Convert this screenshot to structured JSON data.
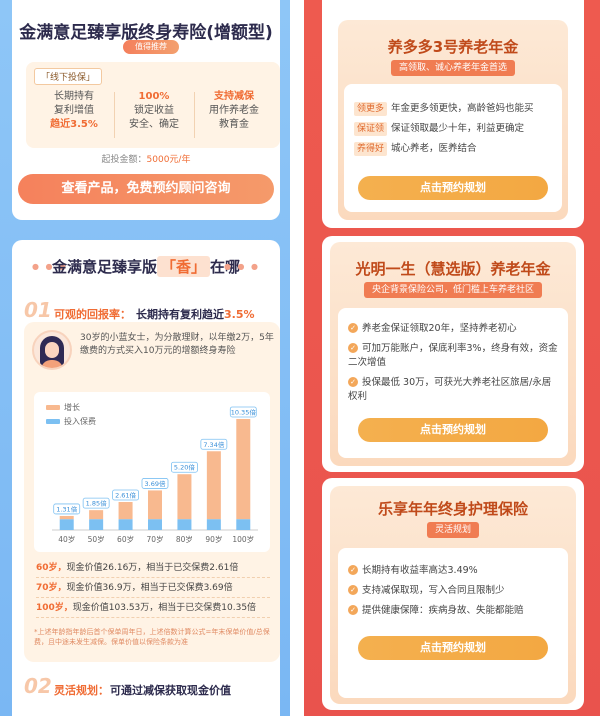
{
  "left": {
    "card1": {
      "title": "金满意足臻享版终身寿险(增额型)",
      "badge": "值得推荐",
      "offline_tag": "「线下投保」",
      "features": [
        {
          "line1": "长期持有",
          "line2": "复利增值",
          "line3": "趋近3.5%"
        },
        {
          "line1": "100%",
          "line2": "锁定收益",
          "line3": "安全、确定"
        },
        {
          "line1": "支持减保",
          "line2": "用作养老金",
          "line3": "教育金"
        }
      ],
      "min_label": "起投金额：",
      "min_value": "5000元/年",
      "cta": "查看产品，免费预约顾问咨询"
    },
    "card2": {
      "title_pre": "金满意足臻享版",
      "title_hl": "「香」",
      "title_post": "在哪",
      "sec1": {
        "num": "01",
        "label": "可观的回报率：",
        "text": "长期持有复利趋近",
        "hl": "3.5%"
      },
      "story": "30岁的小蓝女士，为分散理财，以年缴2万，5年缴费的方式买入10万元的增额终身寿险",
      "legend": {
        "grow": "增长",
        "paid": "投入保费"
      },
      "calcs": [
        {
          "age": "60岁，",
          "text": "现金价值26.16万，相当于已交保费2.61倍"
        },
        {
          "age": "70岁，",
          "text": "现金价值36.9万，相当于已交保费3.69倍"
        },
        {
          "age": "100岁，",
          "text": "现金价值103.53万，相当于已交保费10.35倍"
        }
      ],
      "note": "*上述年龄指年龄后首个保单周年日，上述倍数计算公式=年末保单价值/总保费，且中途未发生减保。保单价值以保险条款为准",
      "sec2": {
        "num": "02",
        "label": "灵活规划：",
        "text": "可通过减保获取现金价值"
      }
    }
  },
  "chart_data": {
    "type": "bar",
    "categories": [
      "40岁",
      "50岁",
      "60岁",
      "70岁",
      "80岁",
      "90岁",
      "100岁"
    ],
    "series": [
      {
        "name": "增长",
        "values": [
          1.31,
          1.85,
          2.61,
          3.69,
          5.2,
          7.34,
          10.35
        ]
      },
      {
        "name": "投入保费",
        "values": [
          1,
          1,
          1,
          1,
          1,
          1,
          1
        ]
      }
    ],
    "data_labels": [
      "1.31倍",
      "1.85倍",
      "2.61倍",
      "3.69倍",
      "5.20倍",
      "7.34倍",
      "10.35倍"
    ],
    "ylim": [
      0,
      11
    ],
    "legend": "top-left",
    "colors": {
      "grow": "#f8b98f",
      "paid": "#7cc0f2"
    }
  },
  "right": {
    "card1": {
      "title": "养多多3号养老年金",
      "sub": "高领取、诚心养老年金首选",
      "lines": [
        {
          "tag": "领更多",
          "text": "年金更多领更快，高龄爸妈也能买"
        },
        {
          "tag": "保证领",
          "text": "保证领取最少十年，利益更确定"
        },
        {
          "tag": "养得好",
          "text": "城心养老，医养结合"
        }
      ],
      "cta": "点击预约规划"
    },
    "card2": {
      "title": "光明一生（慧选版）养老年金",
      "sub": "央企背景保险公司，低门槛上车养老社区",
      "lines": [
        "养老金保证领取20年，坚持养老初心",
        "可加万能账户，保底利率3%，终身有效，资金二次增值",
        "投保最低 30万，可获光大养老社区旅居/永居权利"
      ],
      "cta": "点击预约规划"
    },
    "card3": {
      "title": "乐享年年终身护理保险",
      "sub": "灵活规划",
      "lines": [
        "长期持有收益率高达3.49%",
        "支持减保取现，写入合同且限制少",
        "提供健康保障：疾病身故、失能都能赔"
      ],
      "cta": "点击预约规划"
    }
  }
}
